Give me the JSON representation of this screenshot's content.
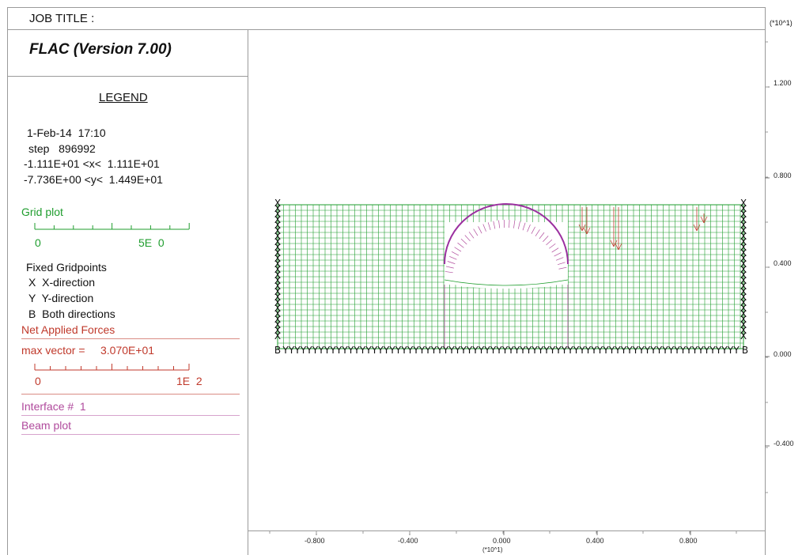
{
  "header": {
    "job_title": "JOB TITLE :",
    "app_title": "FLAC (Version 7.00)",
    "axis_multiplier_y": "(*10^1)",
    "axis_multiplier_x": "(*10^1)"
  },
  "legend": {
    "title": "LEGEND",
    "date_time": "1-Feb-14  17:10",
    "step_line": "step   896992",
    "x_range": "-1.111E+01 <x<  1.111E+01",
    "y_range": "-7.736E+00 <y<  1.449E+01",
    "grid_plot": {
      "title": "Grid plot",
      "scale_min": "0",
      "scale_max": "5E  0"
    },
    "fixed_gridpoints": {
      "title": "Fixed Gridpoints",
      "x_dir": "X  X-direction",
      "y_dir": "Y  Y-direction",
      "both_dir": "B  Both directions"
    },
    "net_forces": {
      "title": "Net Applied Forces",
      "max_vector": "max vector =     3.070E+01",
      "scale_min": "0",
      "scale_max": "1E  2"
    },
    "interface": "Interface #  1",
    "beam": "Beam plot"
  },
  "axes": {
    "y_ticks": [
      "1.200",
      "0.800",
      "0.400",
      "0.000",
      "-0.400"
    ],
    "x_ticks": [
      "-0.800",
      "-0.400",
      "0.000",
      "0.400",
      "0.800"
    ]
  },
  "colors": {
    "grid": "#1f9d2e",
    "forces": "#c0392b",
    "interface": "#b04a9c",
    "beam": "#9b30a0",
    "fixed": "#111111"
  }
}
